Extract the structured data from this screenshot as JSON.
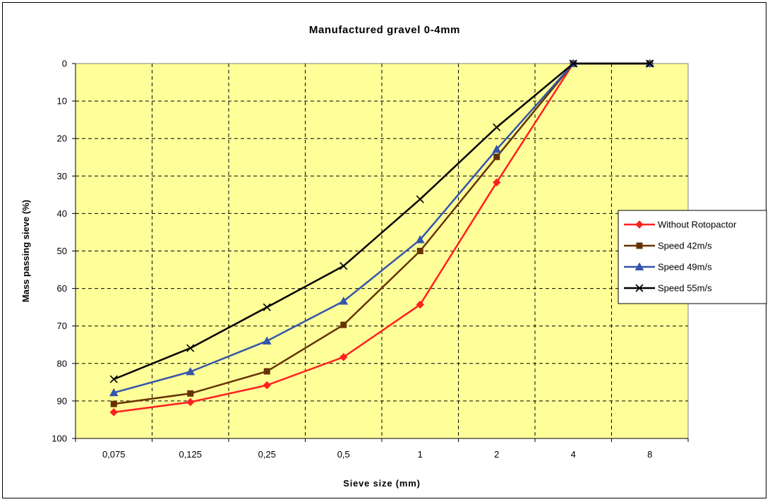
{
  "chart_data": {
    "type": "line",
    "title": "Manufactured gravel 0-4mm",
    "xlabel": "Sieve size (mm)",
    "ylabel": "Mass passing sieve (%)",
    "categories": [
      "0,075",
      "0,125",
      "0,25",
      "0,5",
      "1",
      "2",
      "4",
      "8"
    ],
    "y_ticks": [
      "0",
      "10",
      "20",
      "30",
      "40",
      "50",
      "60",
      "70",
      "80",
      "90",
      "100"
    ],
    "ylim": [
      0,
      100
    ],
    "y_inverted": true,
    "grid": "dashed",
    "plot_background": "#FFFF99",
    "legend_position": "right",
    "series": [
      {
        "name": "Without Rotopactor",
        "color": "#FF2020",
        "marker": "diamond",
        "values": [
          93,
          90.3,
          85.8,
          78.3,
          64.3,
          31.7,
          0,
          0
        ]
      },
      {
        "name": "Speed 42m/s",
        "color": "#663300",
        "marker": "square",
        "values": [
          90.8,
          88,
          82.1,
          69.7,
          50,
          24.9,
          0,
          0
        ]
      },
      {
        "name": "Speed 49m/s",
        "color": "#3355AA",
        "marker": "triangle",
        "values": [
          87.8,
          82.2,
          74,
          63.4,
          47,
          22.9,
          0,
          0
        ]
      },
      {
        "name": "Speed 55m/s",
        "color": "#000000",
        "marker": "x",
        "values": [
          84.2,
          75.9,
          65,
          54,
          36.2,
          17,
          0,
          0
        ]
      }
    ]
  }
}
